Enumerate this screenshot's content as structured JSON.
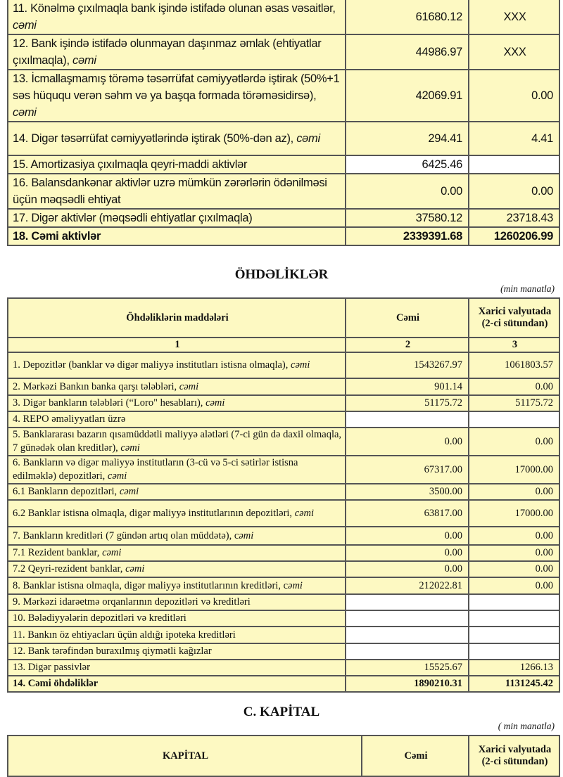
{
  "assets": {
    "rows": [
      {
        "label": "11. Könəlmə çıxılmaqla bank işində istifadə olunan əsas vəsaitlər, ",
        "suffix": "cəmi",
        "total": "61680.12",
        "foreign": "XXX",
        "h": 49
      },
      {
        "label": "12. Bank işində istifadə olunmayan daşınmaz əmlak (ehtiyatlar çıxılmaqla), ",
        "suffix": "cəmi",
        "total": "44986.97",
        "foreign": "XXX",
        "h": 50
      },
      {
        "label": "13. İcmallaşmamış törəmə təsərrüfat cəmiyyətlərdə iştirak (50%+1 səs hüququ verən səhm və ya başqa formada törəməsidirsə), ",
        "suffix": "cəmi",
        "total": "42069.91",
        "foreign": "0.00",
        "h": 73
      },
      {
        "label": "14. Digər təsərrüfat cəmiyyətlərində iştirak (50%-dən az), ",
        "suffix": "cəmi",
        "total": "294.41",
        "foreign": "4.41",
        "h": 48
      },
      {
        "label": "15. Amortizasiya çıxılmaqla qeyri-maddi aktivlər",
        "suffix": "",
        "total": "6425.46",
        "foreign": "",
        "h": 24,
        "white": true
      },
      {
        "label": "16. Balansdankənar aktivlər uzrə mümkün zərərlərin ödənilməsi üçün məqsədli ehtiyat",
        "suffix": "",
        "total": "0.00",
        "foreign": "0.00",
        "h": 48
      },
      {
        "label": "17. Digər aktivlər (məqsədli ehtiyatlar çıxılmaqla)",
        "suffix": "",
        "total": "37580.12",
        "foreign": "23718.43",
        "h": 25
      },
      {
        "label": "18. Cəmi aktivlər",
        "suffix": "",
        "total": "2339391.68",
        "foreign": "1260206.99",
        "h": 25,
        "bold": true
      }
    ]
  },
  "liabilities": {
    "title": "ÖHDƏLİKLƏR",
    "unit": "(min manatla)",
    "headers": [
      "Öhdəliklərin maddələri",
      "Cəmi",
      "Xarici valyutada (2-ci sütundan)"
    ],
    "col_numbers": [
      "1",
      "2",
      "3"
    ],
    "rows": [
      {
        "label": "1. Depozitlər (banklar və digər maliyyə institutları istisna olmaqla), ",
        "suffix": "cəmi",
        "total": "1543267.97",
        "foreign": "1061803.57",
        "h": 37
      },
      {
        "label": "2. Mərkəzi Bankın banka qarşı tələbləri, ",
        "suffix": "cəmi",
        "total": "901.14",
        "foreign": "0.00",
        "h": 24
      },
      {
        "label": "3. Digər bankların tələbləri (“Loro\" hesabları), ",
        "suffix": "cəmi",
        "total": "51175.72",
        "foreign": "51175.72",
        "h": 23
      },
      {
        "label": "4. REPO əməliyyatları  üzrə",
        "suffix": "",
        "total": "",
        "foreign": "",
        "h": 23
      },
      {
        "label": "5. Banklararası bazarın qısamüddətli maliyyə alətləri (7-ci gün də daxil olmaqla, 7 günədək olan kreditlər), ",
        "suffix": "cəmi",
        "total": "0.00",
        "foreign": "0.00",
        "h": 39
      },
      {
        "label": "6. Bankların və digər maliyyə institutların (3-cü və 5-ci sətirlər istisna edilməklə) depozitləri, ",
        "suffix": "cəmi",
        "total": "67317.00",
        "foreign": "17000.00",
        "h": 39
      },
      {
        "label": "6.1  Bankların depozitləri, ",
        "suffix": "cəmi",
        "total": "3500.00",
        "foreign": "0.00",
        "h": 23
      },
      {
        "label": "6.2 Banklar istisna olmaqla, digər maliyyə institutlarının depozitləri, ",
        "suffix": "cəmi",
        "total": "63817.00",
        "foreign": "17000.00",
        "h": 38
      },
      {
        "label": "7. Bankların kreditləri (7 gündən artıq olan müddətə), c",
        "suffix": "əmi",
        "total": "0.00",
        "foreign": "0.00",
        "h": 26
      },
      {
        "label": "7.1 Rezident banklar, ",
        "suffix": "cəmi",
        "total": "0.00",
        "foreign": "0.00",
        "h": 23
      },
      {
        "label": "7.2 Qeyri-rezident banklar, ",
        "suffix": "cəmi",
        "total": "0.00",
        "foreign": "0.00",
        "h": 23
      },
      {
        "label": "8. Banklar istisna olmaqla, digər maliyyə institutlarının kreditləri, c",
        "suffix": "əmi",
        "total": "212022.81",
        "foreign": "0.00",
        "h": 24
      },
      {
        "label": "9. Mərkəzi idarəetmə orqanlarının depozitləri və kreditləri",
        "suffix": "",
        "total": "",
        "foreign": "",
        "h": 23
      },
      {
        "label": "10. Bələdiyyələrin depozitləri və kreditləri",
        "suffix": "",
        "total": "",
        "foreign": "",
        "h": 23
      },
      {
        "label": "11. Bankın öz ehtiyacları üçün aldığı ipoteka kreditləri",
        "suffix": "",
        "total": "",
        "foreign": "",
        "h": 24
      },
      {
        "label": "12. Bank tərəfindən buraxılmış qiymətli kağızlar",
        "suffix": "",
        "total": "",
        "foreign": "",
        "h": 23
      },
      {
        "label": "13. Digər passivlər",
        "suffix": "",
        "total": "15525.67",
        "foreign": "1266.13",
        "h": 23
      },
      {
        "label": "14. Cəmi öhdəliklər",
        "suffix": "",
        "total": "1890210.31",
        "foreign": "1131245.42",
        "h": 23,
        "bold": true
      }
    ]
  },
  "capital": {
    "title": "C. KAPİTAL",
    "unit": "( min manatla)",
    "headers": [
      "KAPİTAL",
      "Cəmi",
      "Xarici valyutada (2-ci sütundan)"
    ]
  },
  "colors": {
    "cell_bg": "#fdf9c2",
    "border": "#555555",
    "empty_cell": "#ffffff"
  }
}
